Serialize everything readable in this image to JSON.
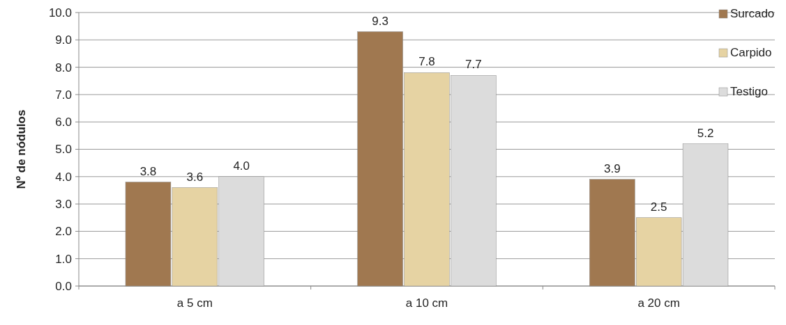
{
  "chart_data": {
    "type": "bar",
    "ylabel": "Nº de nódulos",
    "categories": [
      "a 5 cm",
      "a 10 cm",
      "a 20 cm"
    ],
    "series": [
      {
        "name": "Surcado",
        "color": "#a07850",
        "values": [
          3.8,
          9.3,
          3.9
        ],
        "value_labels": [
          "3.8",
          "9.3",
          "3.9"
        ]
      },
      {
        "name": "Carpido",
        "color": "#e6d3a3",
        "values": [
          3.6,
          7.8,
          2.5
        ],
        "value_labels": [
          "3.6",
          "7.8",
          "2.5"
        ]
      },
      {
        "name": "Testigo",
        "color": "#dcdcdc",
        "values": [
          4.0,
          7.7,
          5.2
        ],
        "value_labels": [
          "4.0",
          "7.7",
          "5.2"
        ]
      }
    ],
    "ylim": [
      0,
      10
    ],
    "yticks": [
      {
        "value": 0,
        "label": "0.0"
      },
      {
        "value": 1,
        "label": "1.0"
      },
      {
        "value": 2,
        "label": "2.0"
      },
      {
        "value": 3,
        "label": "3.0"
      },
      {
        "value": 4,
        "label": "4.0"
      },
      {
        "value": 5,
        "label": "5.0"
      },
      {
        "value": 6,
        "label": "6.0"
      },
      {
        "value": 7,
        "label": "7.0"
      },
      {
        "value": 8,
        "label": "8.0"
      },
      {
        "value": 9,
        "label": "9.0"
      },
      {
        "value": 10,
        "label": "10.0"
      }
    ],
    "grid": "y",
    "legend": "top right"
  }
}
